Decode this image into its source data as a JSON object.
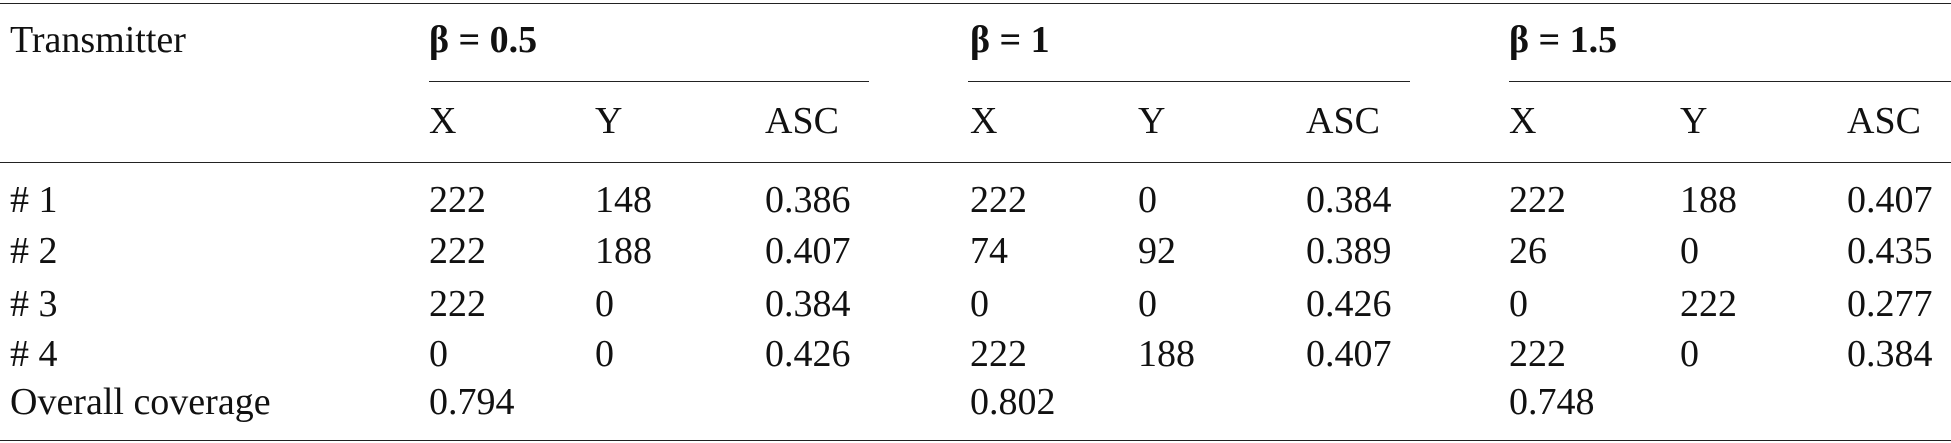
{
  "table": {
    "header": "Transmitter",
    "groups": [
      "β = 0.5",
      "β = 1",
      "β = 1.5"
    ],
    "subheaders": [
      [
        "X",
        "Y",
        "ASC"
      ],
      [
        "X",
        "Y",
        "ASC"
      ],
      [
        "X",
        "Y",
        "ASC"
      ]
    ],
    "rows": [
      [
        "# 1",
        "222",
        "148",
        "0.386",
        "222",
        "0",
        "0.384",
        "222",
        "188",
        "0.407"
      ],
      [
        "# 2",
        "222",
        "188",
        "0.407",
        "74",
        "92",
        "0.389",
        "26",
        "0",
        "0.435"
      ],
      [
        "# 3",
        "222",
        "0",
        "0.384",
        "0",
        "0",
        "0.426",
        "0",
        "222",
        "0.277"
      ],
      [
        "# 4",
        "0",
        "0",
        "0.426",
        "222",
        "188",
        "0.407",
        "222",
        "0",
        "0.384"
      ],
      [
        "Overall coverage",
        "0.794",
        "0.802",
        "0.748"
      ]
    ]
  }
}
